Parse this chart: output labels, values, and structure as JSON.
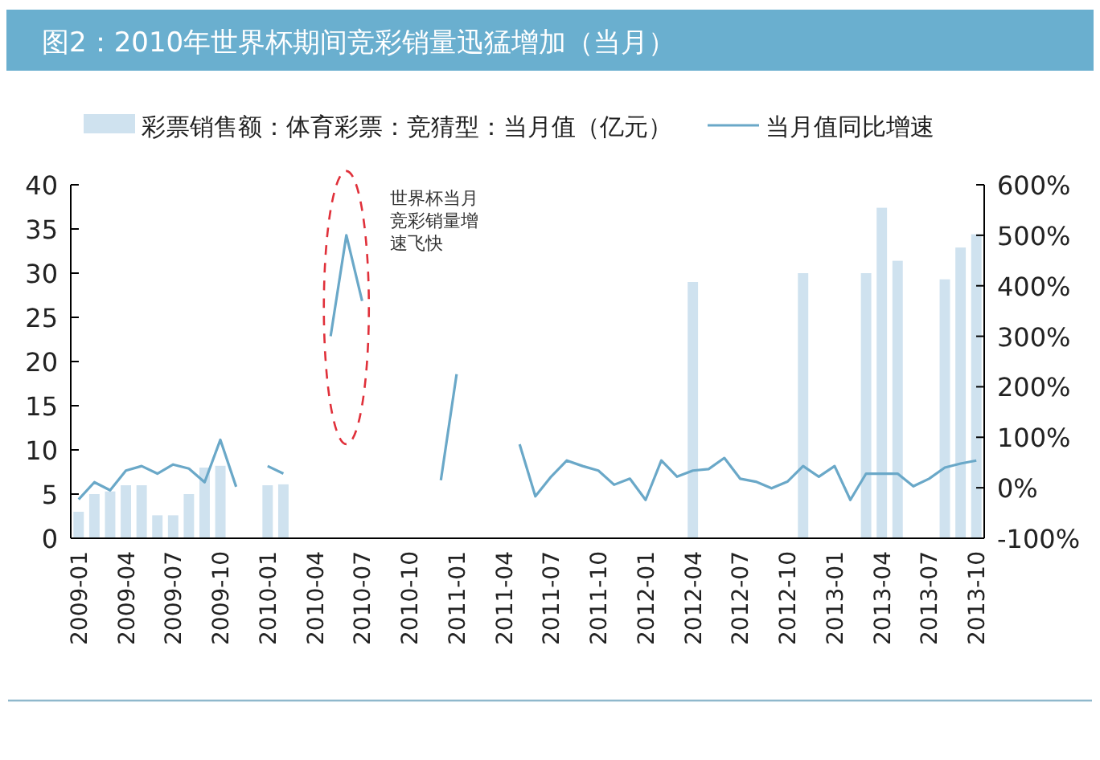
{
  "chart_data": {
    "type": "bar",
    "title": "图2：2010年世界杯期间竞彩销量迅猛增加（当月）",
    "categories": [
      "2009-01",
      null,
      null,
      "2009-04",
      null,
      null,
      "2009-07",
      null,
      null,
      "2009-10",
      null,
      null,
      "2010-01",
      null,
      null,
      "2010-04",
      null,
      null,
      "2010-07",
      null,
      null,
      "2010-10",
      null,
      null,
      "2011-01",
      null,
      null,
      "2011-04",
      null,
      null,
      "2011-07",
      null,
      null,
      "2011-10",
      null,
      null,
      "2012-01",
      null,
      null,
      "2012-04",
      null,
      null,
      "2012-07",
      null,
      null,
      "2012-10",
      null,
      null,
      "2013-01",
      null,
      null,
      "2013-04",
      null,
      null,
      "2013-07",
      null,
      null,
      "2013-10"
    ],
    "series": [
      {
        "name": "彩票销售额：体育彩票：竞猜型：当月值（亿元）",
        "color": "#cfe2ef",
        "values": [
          3,
          5,
          5.3,
          6,
          6,
          2.6,
          2.6,
          5,
          8,
          8.2,
          null,
          null,
          6,
          6.1,
          null,
          null,
          null,
          null,
          null,
          null,
          null,
          null,
          null,
          null,
          null,
          null,
          null,
          null,
          null,
          null,
          null,
          null,
          null,
          null,
          null,
          null,
          null,
          null,
          null,
          29,
          null,
          null,
          null,
          null,
          null,
          null,
          30,
          null,
          null,
          null,
          30,
          37.4,
          31.4,
          null,
          null,
          29.3,
          32.9,
          34.4
        ]
      },
      {
        "name": "当月值同比增速",
        "type": "line",
        "axis": "y2",
        "color": "#6aa8c8",
        "values": [
          -23,
          11,
          -5,
          34,
          43,
          28,
          46,
          38,
          11,
          95,
          2,
          null,
          43,
          28,
          null,
          null,
          300,
          500,
          370,
          null,
          null,
          null,
          null,
          15,
          225,
          null,
          null,
          null,
          86,
          -17,
          22,
          54,
          43,
          34,
          6,
          18,
          -24,
          54,
          22,
          34,
          37,
          59,
          18,
          12,
          -1,
          12,
          43,
          22,
          43,
          -24,
          28,
          28,
          28,
          3,
          18,
          40,
          48,
          54
        ]
      }
    ],
    "ylim": [
      0,
      40
    ],
    "yticks": [
      0,
      5,
      10,
      15,
      20,
      25,
      30,
      35,
      40
    ],
    "y2lim": [
      -100,
      600
    ],
    "y2ticks": [
      {
        "value": -100,
        "label": "-100%"
      },
      {
        "value": 0,
        "label": "0%"
      },
      {
        "value": 100,
        "label": "100%"
      },
      {
        "value": 200,
        "label": "200%"
      },
      {
        "value": 300,
        "label": "300%"
      },
      {
        "value": 400,
        "label": "400%"
      },
      {
        "value": 500,
        "label": "500%"
      },
      {
        "value": 600,
        "label": "600%"
      }
    ],
    "grid": false,
    "legend": "top",
    "annotations": [
      "世界杯当月",
      "竞彩销量增",
      "速飞快"
    ]
  }
}
